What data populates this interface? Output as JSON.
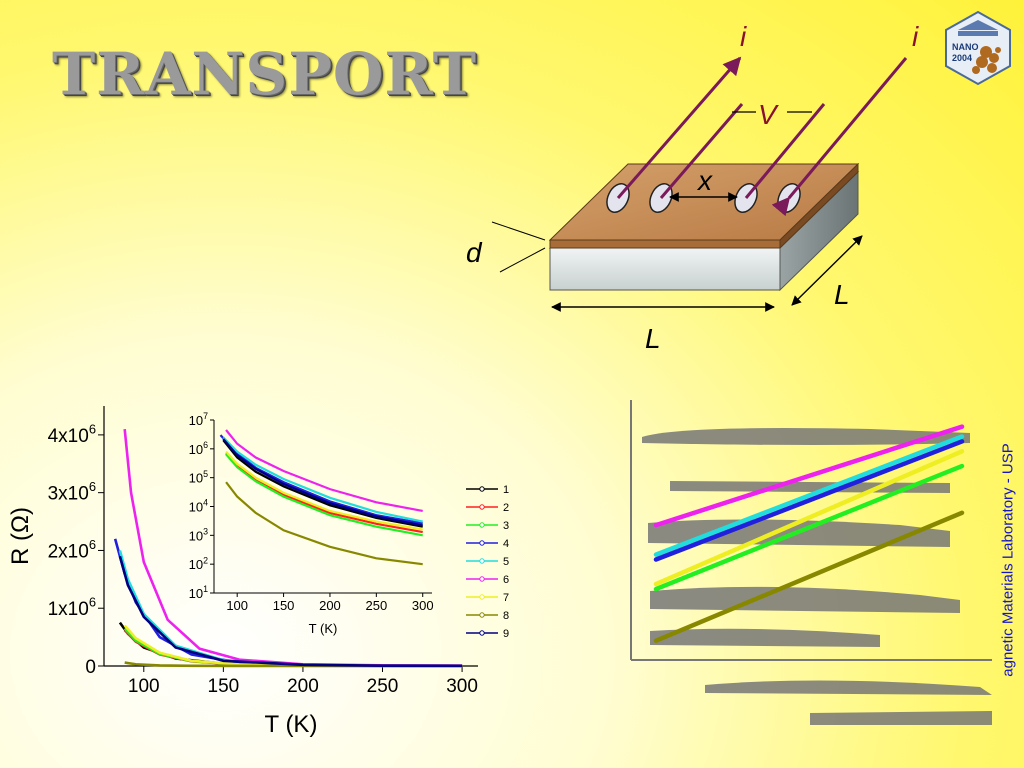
{
  "title": "TRANSPORT",
  "sample_diagram": {
    "current_labels": [
      "i",
      "i"
    ],
    "voltage_label": "V",
    "spacing_label": "x",
    "thickness_label": "d",
    "length_label": "L",
    "width_label": "L"
  },
  "logo": {
    "line1": "NANO",
    "line2": "2004"
  },
  "side_text": "agnetic Materials Laboratory - USP",
  "chart_data": [
    {
      "type": "line",
      "xlabel": "T (K)",
      "ylabel": "R (Ω)",
      "xlim": [
        75,
        310
      ],
      "ylim": [
        0,
        4500000
      ],
      "xticks": [
        100,
        150,
        200,
        250,
        300
      ],
      "yticks": [
        {
          "value": 0,
          "mant": "0",
          "exp": ""
        },
        {
          "value": 1000000,
          "mant": "1x10",
          "exp": "6"
        },
        {
          "value": 2000000,
          "mant": "2x10",
          "exp": "6"
        },
        {
          "value": 3000000,
          "mant": "3x10",
          "exp": "6"
        },
        {
          "value": 4000000,
          "mant": "4x10",
          "exp": "6"
        }
      ],
      "legend_position": "right",
      "series": [
        {
          "name": "1",
          "color": "#000000",
          "x": [
            85,
            90,
            100,
            120,
            150,
            200,
            250,
            300
          ],
          "values": [
            750000,
            560000,
            320000,
            130000,
            40000,
            9000,
            4000,
            2200
          ]
        },
        {
          "name": "2",
          "color": "#ff2020",
          "x": [
            88,
            95,
            110,
            130,
            160,
            200,
            250,
            300
          ],
          "values": [
            620000,
            420000,
            200000,
            80000,
            25000,
            6000,
            2500,
            1300
          ]
        },
        {
          "name": "3",
          "color": "#22ee22",
          "x": [
            88,
            95,
            110,
            130,
            160,
            200,
            250,
            300
          ],
          "values": [
            650000,
            440000,
            210000,
            85000,
            26000,
            6000,
            2500,
            1200
          ]
        },
        {
          "name": "4",
          "color": "#2020dd",
          "x": [
            82,
            88,
            95,
            110,
            130,
            160,
            200,
            250,
            300
          ],
          "values": [
            2200000,
            1600000,
            1100000,
            500000,
            200000,
            60000,
            15000,
            5000,
            2500
          ]
        },
        {
          "name": "5",
          "color": "#22dddd",
          "x": [
            85,
            90,
            100,
            120,
            150,
            200,
            250,
            300
          ],
          "values": [
            2000000,
            1500000,
            900000,
            350000,
            100000,
            22000,
            7000,
            3200
          ]
        },
        {
          "name": "6",
          "color": "#ee22ee",
          "x": [
            88,
            92,
            100,
            115,
            135,
            160,
            200,
            250,
            300
          ],
          "values": [
            4100000,
            3000000,
            1800000,
            800000,
            300000,
            110000,
            30000,
            11000,
            7000
          ]
        },
        {
          "name": "7",
          "color": "#eeee22",
          "x": [
            88,
            95,
            110,
            130,
            160,
            200,
            250,
            300
          ],
          "values": [
            700000,
            480000,
            230000,
            90000,
            28000,
            7000,
            3000,
            1600
          ]
        },
        {
          "name": "8",
          "color": "#888800",
          "x": [
            88,
            95,
            110,
            130,
            160,
            200,
            250,
            300
          ],
          "values": [
            60000,
            30000,
            10000,
            3500,
            1200,
            400,
            150,
            90
          ]
        },
        {
          "name": "9",
          "color": "#000080",
          "x": [
            85,
            90,
            100,
            120,
            150,
            200,
            250,
            300
          ],
          "values": [
            1900000,
            1400000,
            850000,
            320000,
            90000,
            20000,
            6000,
            2800
          ]
        }
      ]
    },
    {
      "type": "line",
      "xlabel": "T (K)",
      "ylabel": "",
      "yscale": "log",
      "xlim": [
        75,
        310
      ],
      "ylim": [
        10,
        10000000
      ],
      "xticks": [
        100,
        150,
        200,
        250,
        300
      ],
      "yticks": [
        {
          "value": 10,
          "mant": "10",
          "exp": "1"
        },
        {
          "value": 100,
          "mant": "10",
          "exp": "2"
        },
        {
          "value": 1000,
          "mant": "10",
          "exp": "3"
        },
        {
          "value": 10000,
          "mant": "10",
          "exp": "4"
        },
        {
          "value": 100000,
          "mant": "10",
          "exp": "5"
        },
        {
          "value": 1000000,
          "mant": "10",
          "exp": "6"
        },
        {
          "value": 10000000,
          "mant": "10",
          "exp": "7"
        }
      ],
      "series": [
        {
          "name": "1",
          "color": "#000000",
          "x": [
            85,
            100,
            120,
            150,
            200,
            250,
            300
          ],
          "values": [
            2000000,
            500000,
            160000,
            50000,
            11000,
            4000,
            2000
          ]
        },
        {
          "name": "2",
          "color": "#ff2020",
          "x": [
            88,
            100,
            120,
            150,
            200,
            250,
            300
          ],
          "values": [
            700000,
            250000,
            80000,
            25000,
            6000,
            2500,
            1300
          ]
        },
        {
          "name": "3",
          "color": "#22ee22",
          "x": [
            88,
            100,
            120,
            150,
            200,
            250,
            300
          ],
          "values": [
            650000,
            230000,
            75000,
            22000,
            5000,
            2000,
            1000
          ]
        },
        {
          "name": "4",
          "color": "#2020dd",
          "x": [
            82,
            100,
            120,
            150,
            200,
            250,
            300
          ],
          "values": [
            3000000,
            700000,
            220000,
            70000,
            15000,
            5000,
            2600
          ]
        },
        {
          "name": "5",
          "color": "#22dddd",
          "x": [
            85,
            100,
            120,
            150,
            200,
            250,
            300
          ],
          "values": [
            2500000,
            800000,
            280000,
            90000,
            20000,
            6500,
            3000
          ]
        },
        {
          "name": "6",
          "color": "#ee22ee",
          "x": [
            88,
            100,
            120,
            150,
            200,
            250,
            300
          ],
          "values": [
            4500000,
            1500000,
            500000,
            170000,
            40000,
            14000,
            7000
          ]
        },
        {
          "name": "7",
          "color": "#eeee22",
          "x": [
            88,
            100,
            120,
            150,
            200,
            250,
            300
          ],
          "values": [
            800000,
            300000,
            100000,
            30000,
            7000,
            3000,
            1600
          ]
        },
        {
          "name": "8",
          "color": "#888800",
          "x": [
            88,
            100,
            120,
            150,
            200,
            250,
            300
          ],
          "values": [
            70000,
            22000,
            6000,
            1500,
            400,
            160,
            100
          ]
        },
        {
          "name": "9",
          "color": "#000080",
          "x": [
            85,
            100,
            120,
            150,
            200,
            250,
            300
          ],
          "values": [
            2200000,
            600000,
            200000,
            60000,
            13000,
            4500,
            2200
          ]
        }
      ]
    },
    {
      "type": "line",
      "xlabel": "",
      "ylabel": "",
      "series": [
        {
          "color": "#ee22ee",
          "x": [
            0,
            1
          ],
          "values": [
            0.52,
            0.92
          ]
        },
        {
          "color": "#22dddd",
          "x": [
            0,
            1
          ],
          "values": [
            0.4,
            0.88
          ]
        },
        {
          "color": "#2020dd",
          "x": [
            0,
            1
          ],
          "values": [
            0.38,
            0.86
          ]
        },
        {
          "color": "#eeee22",
          "x": [
            0,
            1
          ],
          "values": [
            0.28,
            0.82
          ]
        },
        {
          "color": "#22ee22",
          "x": [
            0,
            1
          ],
          "values": [
            0.26,
            0.76
          ]
        },
        {
          "color": "#888800",
          "x": [
            0,
            1
          ],
          "values": [
            0.05,
            0.57
          ]
        }
      ]
    }
  ]
}
